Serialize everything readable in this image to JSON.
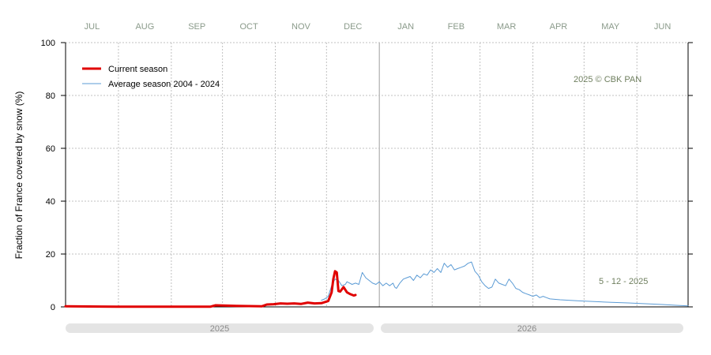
{
  "colors": {
    "current": "#e00000",
    "average": "#5b9bd5",
    "grid": "#c0c0c0",
    "month_label": "#8a9a8a",
    "year_bar": "#e4e4e4",
    "year_divider": "#bdbdbd",
    "annotation": "#6f7f5f"
  },
  "chart_data": {
    "type": "line",
    "months": [
      "JUL",
      "AUG",
      "SEP",
      "OCT",
      "NOV",
      "DEC",
      "JAN",
      "FEB",
      "MAR",
      "APR",
      "MAY",
      "JUN"
    ],
    "ylabel": "Fraction of  France  covered by snow (%)",
    "ylim": [
      0,
      100
    ],
    "yticks": [
      0,
      20,
      40,
      60,
      80,
      100
    ],
    "x_unit": "day of season from 1 July",
    "xlim": [
      0,
      365
    ],
    "legend": {
      "position": "top-left"
    },
    "copyright": "2025  © CBK PAN",
    "date_stamp": "5 - 12 - 2025",
    "years": [
      "2025",
      "2026"
    ],
    "series": [
      {
        "name": "Current season",
        "color": "#e00000",
        "x": [
          0,
          30,
          60,
          85,
          88,
          100,
          115,
          118,
          122,
          126,
          130,
          134,
          138,
          142,
          146,
          150,
          154,
          156,
          157,
          158,
          159,
          160,
          161,
          163,
          165,
          167,
          169,
          170
        ],
        "y": [
          0.2,
          0.1,
          0.1,
          0.1,
          0.6,
          0.4,
          0.2,
          0.9,
          1.0,
          1.3,
          1.2,
          1.3,
          1.1,
          1.6,
          1.3,
          1.4,
          2.2,
          5.5,
          10.5,
          13.5,
          13.0,
          6.0,
          5.8,
          7.5,
          5.5,
          4.8,
          4.3,
          4.5
        ]
      },
      {
        "name": "Average season 2004 - 2024",
        "color": "#5b9bd5",
        "x": [
          150,
          152,
          154,
          156,
          158,
          160,
          162,
          164,
          165,
          168,
          170,
          172,
          174,
          176,
          178,
          180,
          182,
          184,
          186,
          188,
          190,
          192,
          193,
          194,
          195,
          196,
          198,
          200,
          202,
          204,
          206,
          208,
          210,
          212,
          214,
          216,
          218,
          220,
          222,
          224,
          226,
          228,
          230,
          232,
          234,
          236,
          238,
          240,
          242,
          244,
          246,
          248,
          250,
          252,
          254,
          256,
          258,
          260,
          262,
          264,
          266,
          268,
          270,
          272,
          274,
          276,
          278,
          280,
          282,
          284,
          290,
          300,
          310,
          320,
          330,
          340,
          350,
          358,
          365
        ],
        "y": [
          2.5,
          3.0,
          4.0,
          8.0,
          10.5,
          10.0,
          8.0,
          8.5,
          9.5,
          8.5,
          9.0,
          8.5,
          13.0,
          11.0,
          10.0,
          9.0,
          8.5,
          9.5,
          8.0,
          9.0,
          8.0,
          9.0,
          7.5,
          7.0,
          8.0,
          9.0,
          10.5,
          11.0,
          11.5,
          10.0,
          12.0,
          11.0,
          12.5,
          12.0,
          14.0,
          13.0,
          14.5,
          13.0,
          16.5,
          15.0,
          16.0,
          14.0,
          14.5,
          15.0,
          15.5,
          16.5,
          17.0,
          13.5,
          12.0,
          9.5,
          8.0,
          7.0,
          7.5,
          10.5,
          9.0,
          8.5,
          8.0,
          10.5,
          9.0,
          7.0,
          6.5,
          5.5,
          5.0,
          4.5,
          4.0,
          4.5,
          3.5,
          4.0,
          3.5,
          3.0,
          2.7,
          2.3,
          2.0,
          1.7,
          1.5,
          1.2,
          0.9,
          0.6,
          0.4
        ]
      }
    ]
  }
}
